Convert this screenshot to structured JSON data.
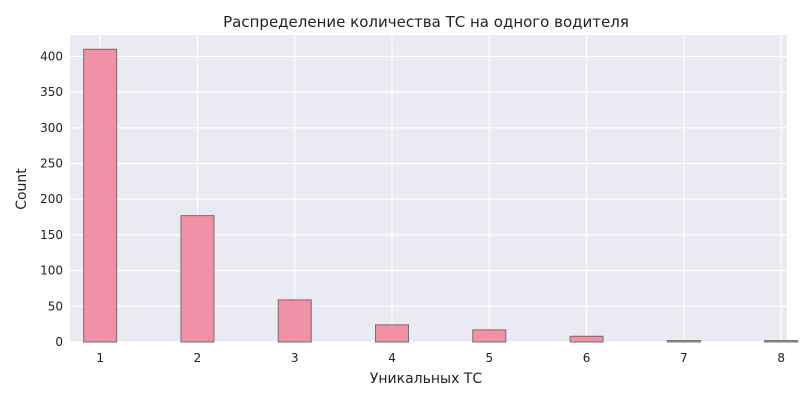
{
  "chart_data": {
    "type": "bar",
    "title": "Распределение количества ТС на одного водителя",
    "xlabel": "Уникальных ТС",
    "ylabel": "Count",
    "x": [
      1,
      2,
      3,
      4,
      5,
      6,
      7,
      8
    ],
    "values": [
      410,
      177,
      59,
      24,
      17,
      8,
      2,
      2
    ],
    "x_ticks": [
      "1",
      "2",
      "3",
      "4",
      "5",
      "6",
      "7",
      "8"
    ],
    "y_ticks": [
      "0",
      "50",
      "100",
      "150",
      "200",
      "250",
      "300",
      "350",
      "400"
    ],
    "xlim": [
      0.69,
      8.06
    ],
    "ylim": [
      0,
      430
    ],
    "grid": true,
    "colors": {
      "bar_fill": "#f08ca0",
      "bar_edge": "#7a6a6e",
      "plot_bg": "#eaeaf2",
      "grid": "#ffffff"
    }
  }
}
